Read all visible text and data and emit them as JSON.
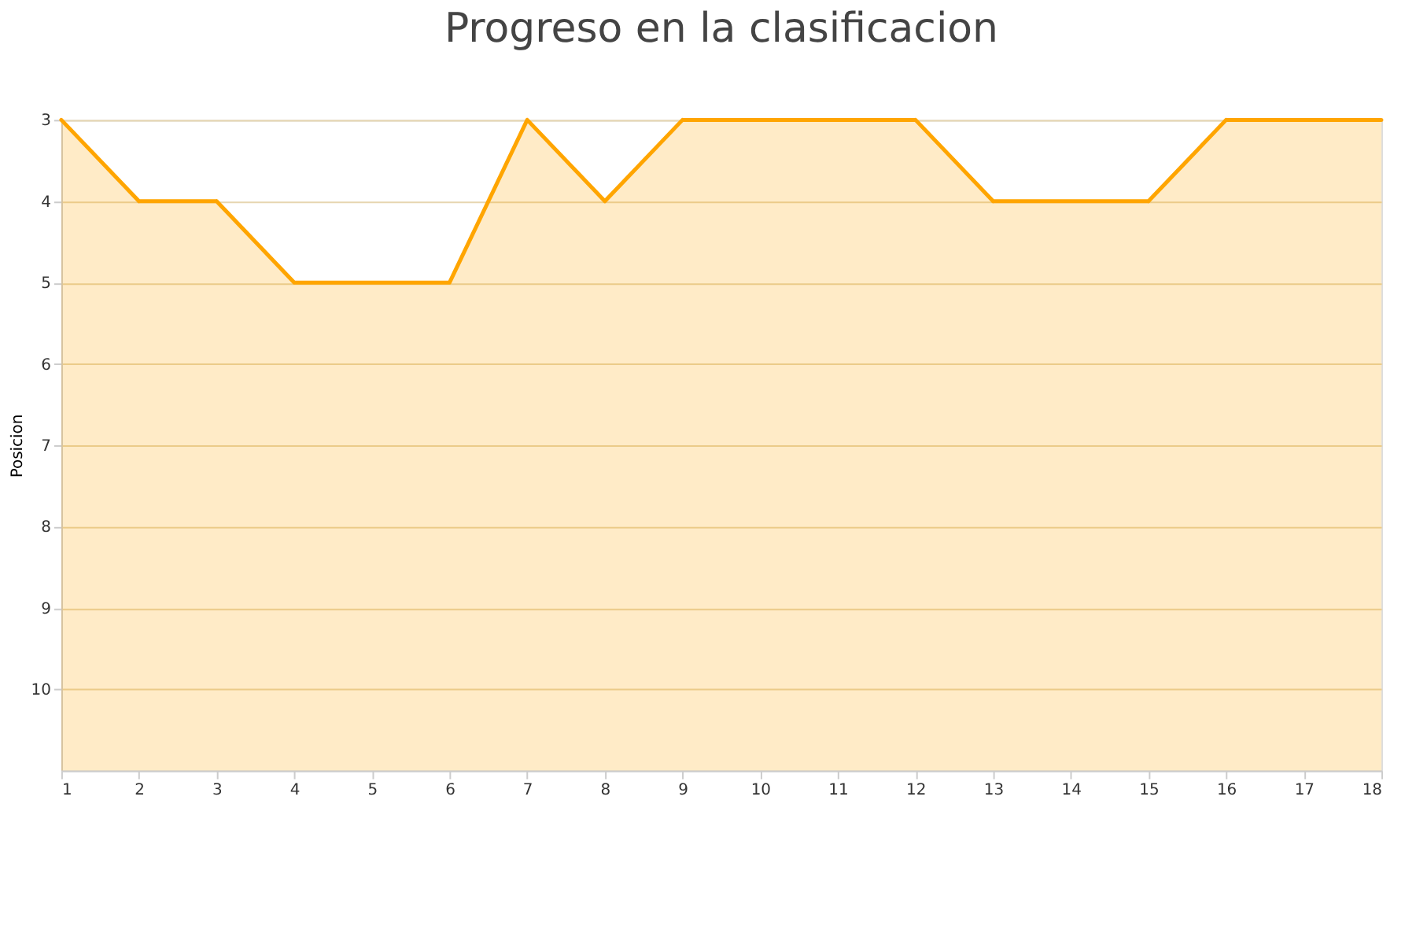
{
  "chart_data": {
    "type": "area",
    "title": "Progreso en la clasificacion",
    "ylabel": "Posicion",
    "x": [
      1,
      2,
      3,
      4,
      5,
      6,
      7,
      8,
      9,
      10,
      11,
      12,
      13,
      14,
      15,
      16,
      17,
      18
    ],
    "series": [
      {
        "color": "#ffa500",
        "values": [
          3,
          4,
          4,
          5,
          5,
          5,
          3,
          4,
          3,
          3,
          3,
          3,
          4,
          4,
          4,
          3,
          3,
          3
        ]
      }
    ],
    "xlim": [
      1,
      18
    ],
    "xticks": [
      1,
      2,
      3,
      4,
      5,
      6,
      7,
      8,
      9,
      10,
      11,
      12,
      13,
      14,
      15,
      16,
      17,
      18
    ],
    "ylim": [
      11,
      3
    ],
    "yticks": [
      3,
      4,
      5,
      6,
      7,
      8,
      9,
      10
    ],
    "grid": "y",
    "legend": false
  }
}
